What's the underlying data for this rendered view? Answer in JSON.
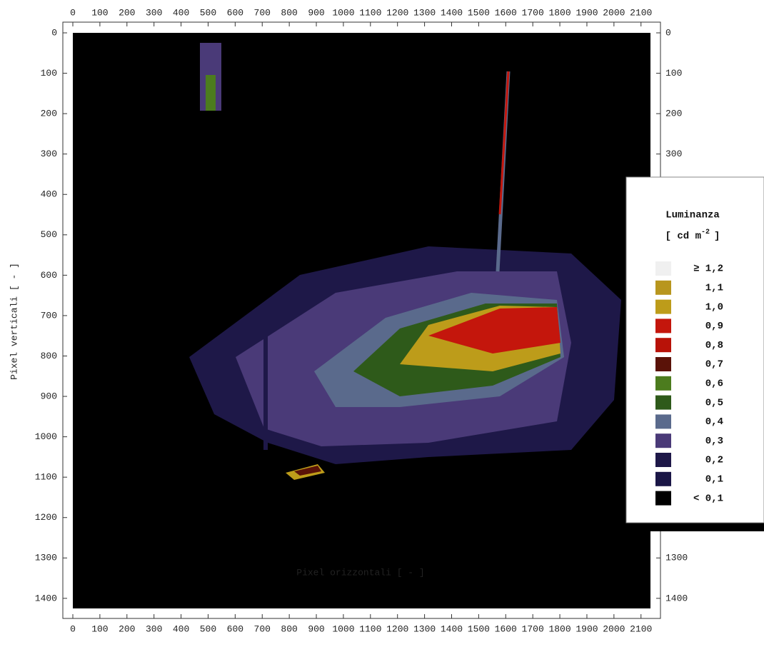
{
  "chart_data": {
    "type": "image",
    "xlabel": "Pixel orizzontali [ - ]",
    "ylabel": "Pixel verticali [ - ]",
    "xlim": [
      0,
      2135
    ],
    "ylim": [
      0,
      1425
    ],
    "xticks": [
      0,
      100,
      200,
      300,
      400,
      500,
      600,
      700,
      800,
      900,
      1000,
      1100,
      1200,
      1300,
      1400,
      1500,
      1600,
      1700,
      1800,
      1900,
      2000,
      2100
    ],
    "yticks": [
      0,
      100,
      200,
      300,
      400,
      500,
      600,
      700,
      800,
      900,
      1000,
      1100,
      1200,
      1300,
      1400
    ],
    "legend": {
      "title": "Luminanza",
      "unit": "[ cd m",
      "unit_exponent": "-2",
      "unit_close": "]",
      "entries": [
        {
          "label": "≥ 1,2",
          "color": "#f0f0f0"
        },
        {
          "label": "1,1",
          "color": "#b8961e"
        },
        {
          "label": "1,0",
          "color": "#bd9c1a"
        },
        {
          "label": "0,9",
          "color": "#c4160c"
        },
        {
          "label": "0,8",
          "color": "#b81208"
        },
        {
          "label": "0,7",
          "color": "#5a1208"
        },
        {
          "label": "0,6",
          "color": "#4c7c1e"
        },
        {
          "label": "0,5",
          "color": "#2e5a1a"
        },
        {
          "label": "0,4",
          "color": "#5a6a8c"
        },
        {
          "label": "0,3",
          "color": "#4a3a78"
        },
        {
          "label": "0,2",
          "color": "#1e1848"
        },
        {
          "label": "0,1",
          "color": "#1a1646"
        },
        {
          "label": "< 0,1",
          "color": "#000000"
        }
      ]
    }
  }
}
